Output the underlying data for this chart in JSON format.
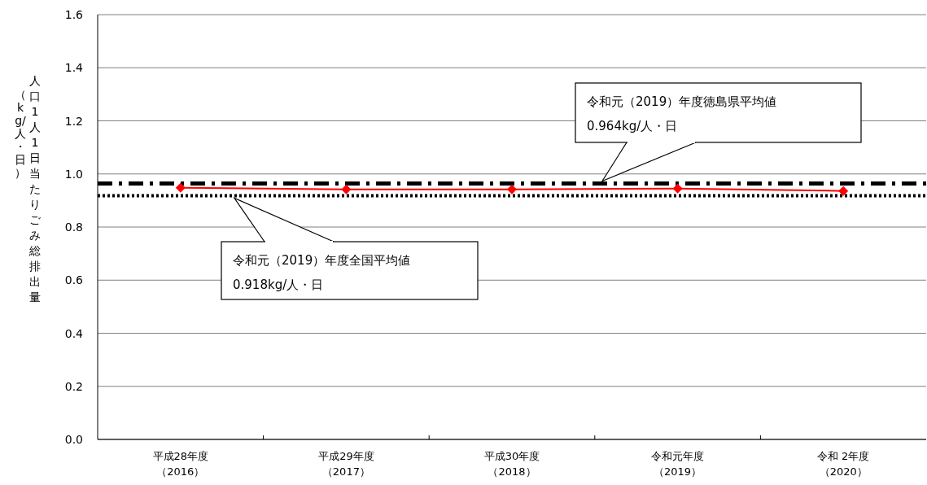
{
  "chart_data": {
    "type": "line",
    "ylabel": "人口1人1日当たりごみ総排出量（kg/人・日）",
    "categories": [
      "平成28年度（2016）",
      "平成29年度（2017）",
      "平成30年度（2018）",
      "令和元年度（2019）",
      "令和 2年度（2020）"
    ],
    "series": [
      {
        "color": "#ff0000",
        "values": [
          0.948,
          0.942,
          0.942,
          0.945,
          0.936
        ]
      }
    ],
    "marker": "diamond",
    "line_style": "solid",
    "ylim": [
      0,
      1.6
    ],
    "yticks": [
      {
        "value": 0,
        "label": "0.0"
      },
      {
        "value": 0.2,
        "label": "0.2"
      },
      {
        "value": 0.4,
        "label": "0.4"
      },
      {
        "value": 0.6,
        "label": "0.6"
      },
      {
        "value": 0.8,
        "label": "0.8"
      },
      {
        "value": 1,
        "label": "1.0"
      },
      {
        "value": 1.2,
        "label": "1.2"
      },
      {
        "value": 1.4,
        "label": "1.4"
      },
      {
        "value": 1.6,
        "label": "1.6"
      }
    ],
    "grid": "y",
    "ref_lines": [
      {
        "axis": "y",
        "value": 0.964,
        "label": "令和元（2019）年度徳島県平均値\n0.964kg/人・日",
        "color": "#000000",
        "line_style": "dashdot"
      },
      {
        "axis": "y",
        "value": 0.918,
        "label": "令和元（2019）年度全国平均値\n0.918kg/人・日",
        "color": "#000000",
        "line_style": "dotted"
      }
    ]
  }
}
